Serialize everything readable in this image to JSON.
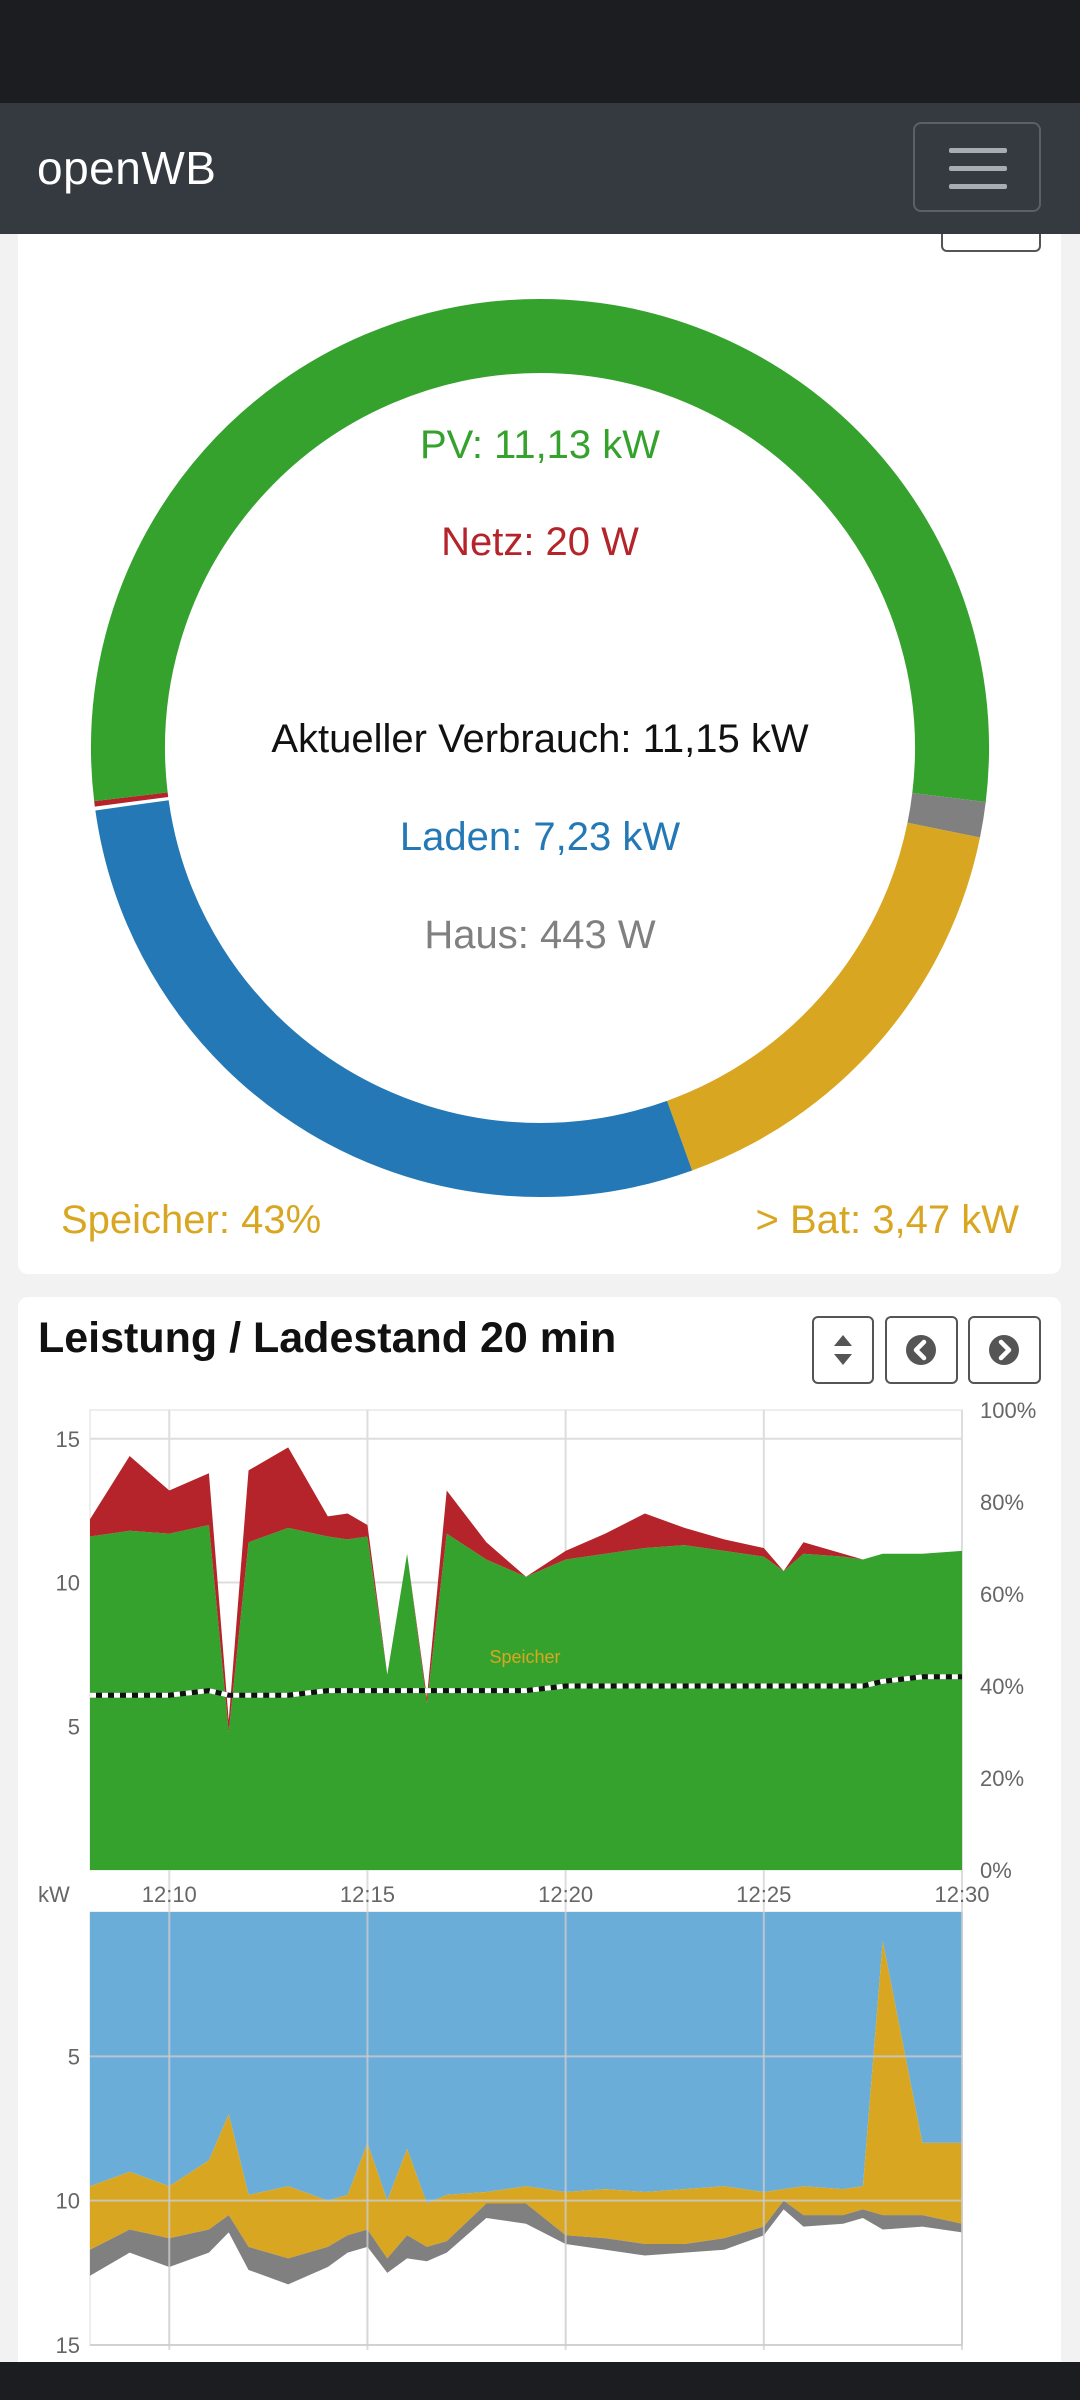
{
  "navbar": {
    "brand": "openWB"
  },
  "donut": {
    "pv": "PV: 11,13 kW",
    "grid": "Netz: 20 W",
    "consumption": "Aktueller Verbrauch: 11,15 kW",
    "charging": "Laden: 7,23 kW",
    "house": "Haus: 443 W",
    "storage_soc": "Speicher: 43%",
    "battery_power": "> Bat: 3,47 kW"
  },
  "chart": {
    "title": "Leistung / Ladestand 20 min",
    "buttons": {
      "toggle": "sort-icon",
      "prev": "chevron-left-icon",
      "next": "chevron-right-icon"
    }
  },
  "colors": {
    "pv": "#35a22e",
    "grid": "#b4242a",
    "charging": "#2378b5",
    "house": "#808080",
    "battery": "#d9a621",
    "charging_light": "#6aadd8",
    "pv_light": "#a6d68a"
  },
  "chart_data": [
    {
      "type": "area",
      "series": [
        {
          "name": "Speicher",
          "values": [
            38,
            38,
            38,
            39,
            38,
            38,
            38,
            39,
            39,
            39,
            39,
            39,
            39,
            39,
            39,
            39,
            40,
            40,
            40,
            40,
            40,
            40,
            40,
            40,
            40,
            40,
            41,
            42,
            42
          ]
        },
        {
          "values": [
            11.6,
            11.8,
            11.7,
            12.0,
            4.8,
            11.4,
            11.9,
            11.6,
            11.5,
            11.6,
            6.8,
            11.0,
            5.8,
            11.7,
            10.8,
            10.2,
            10.8,
            11.0,
            11.2,
            11.3,
            11.1,
            10.9,
            10.4,
            11.0,
            10.9,
            10.8,
            11.0,
            11.0,
            11.1
          ]
        },
        {
          "values": [
            0.6,
            2.6,
            1.5,
            1.8,
            0.4,
            2.5,
            2.8,
            0.7,
            0.9,
            0.4,
            0.0,
            0.0,
            0.2,
            1.5,
            0.6,
            0.0,
            0.3,
            0.7,
            1.2,
            0.6,
            0.4,
            0.3,
            0.0,
            0.4,
            0.1,
            0.0,
            0.0,
            0.0,
            0.0
          ]
        }
      ],
      "x": [
        "12:08",
        "12:09",
        "12:10",
        "12:11",
        "12:11.5",
        "12:12",
        "12:13",
        "12:14",
        "12:14.5",
        "12:15",
        "12:15.5",
        "12:16",
        "12:16.5",
        "12:17",
        "12:18",
        "12:19",
        "12:20",
        "12:21",
        "12:22",
        "12:23",
        "12:24",
        "12:25",
        "12:25.5",
        "12:26",
        "12:27",
        "12:27.5",
        "12:28",
        "12:29",
        "12:30"
      ],
      "x_ticks": [
        "12:10",
        "12:15",
        "12:20",
        "12:25",
        "12:30"
      ],
      "y_ticks": [
        "5",
        "10",
        "15"
      ],
      "y2_ticks": [
        "0%",
        "20%",
        "40%",
        "60%",
        "80%",
        "100%"
      ],
      "ylabel": "kW",
      "ylim": [
        0,
        16
      ],
      "y2lim": [
        0,
        100
      ],
      "grid": true
    },
    {
      "type": "area",
      "series": [
        {
          "values": [
            9.5,
            9.0,
            9.5,
            8.6,
            7.0,
            9.8,
            9.5,
            10.0,
            9.8,
            8.0,
            10.0,
            8.2,
            10.1,
            9.8,
            9.7,
            9.5,
            9.7,
            9.6,
            9.7,
            9.6,
            9.5,
            9.7,
            9.6,
            9.5,
            9.6,
            9.5,
            1.0,
            8.0,
            8.0
          ]
        },
        {
          "values": [
            2.2,
            2.0,
            1.8,
            2.4,
            3.5,
            1.8,
            2.5,
            1.6,
            1.4,
            3.0,
            2.0,
            3.0,
            1.5,
            1.6,
            0.4,
            0.6,
            1.5,
            1.7,
            1.8,
            1.9,
            1.8,
            1.2,
            0.4,
            1.0,
            0.9,
            0.8,
            9.5,
            2.5,
            2.8
          ]
        },
        {
          "values": [
            0.9,
            0.8,
            1.0,
            0.8,
            0.6,
            0.8,
            0.9,
            0.7,
            0.6,
            0.6,
            0.5,
            0.8,
            0.5,
            0.4,
            0.5,
            0.7,
            0.3,
            0.4,
            0.4,
            0.3,
            0.4,
            0.3,
            0.3,
            0.4,
            0.3,
            0.3,
            0.5,
            0.4,
            0.3
          ]
        }
      ],
      "x": [
        "12:08",
        "12:09",
        "12:10",
        "12:11",
        "12:11.5",
        "12:12",
        "12:13",
        "12:14",
        "12:14.5",
        "12:15",
        "12:15.5",
        "12:16",
        "12:16.5",
        "12:17",
        "12:18",
        "12:19",
        "12:20",
        "12:21",
        "12:22",
        "12:23",
        "12:24",
        "12:25",
        "12:25.5",
        "12:26",
        "12:27",
        "12:27.5",
        "12:28",
        "12:29",
        "12:30"
      ],
      "y_ticks": [
        "5",
        "10",
        "15"
      ],
      "ylim": [
        0,
        15
      ],
      "y_inverted": true,
      "grid": true
    }
  ]
}
